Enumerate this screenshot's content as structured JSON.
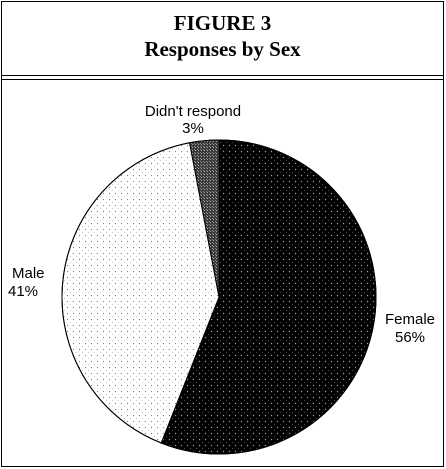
{
  "figure": {
    "label": "FIGURE 3",
    "title": "Responses by Sex"
  },
  "colors": {
    "female": "#000000",
    "male": "#ffffff",
    "no_response": "#333333",
    "stroke": "#000000"
  },
  "chart_data": {
    "type": "pie",
    "title": "Responses by Sex",
    "slices": [
      {
        "label": "Female",
        "value": 56,
        "value_label": "56%",
        "pattern": "dark-dotted"
      },
      {
        "label": "Male",
        "value": 41,
        "value_label": "41%",
        "pattern": "light-dotted"
      },
      {
        "label": "Didn't respond",
        "value": 3,
        "value_label": "3%",
        "pattern": "dark-crosshatch"
      }
    ]
  }
}
